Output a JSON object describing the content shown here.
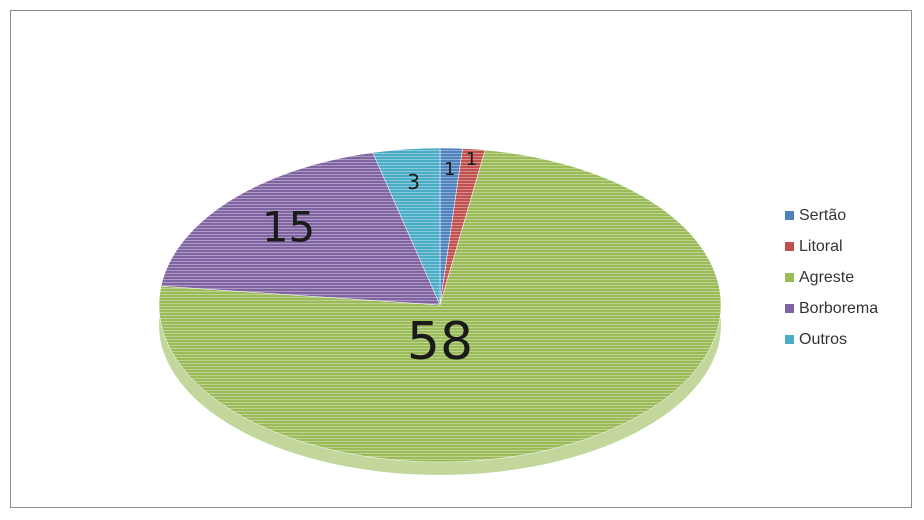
{
  "chart_data": {
    "type": "pie",
    "title": "",
    "categories": [
      "Sertão",
      "Litoral",
      "Agreste",
      "Borborema",
      "Outros"
    ],
    "values": [
      1,
      1,
      58,
      15,
      3
    ],
    "colors": [
      "#4f81bd",
      "#c0504d",
      "#9bbb59",
      "#8064a2",
      "#4bacc6"
    ],
    "data_labels": [
      "1",
      "1",
      "58",
      "15",
      "3"
    ],
    "legend_position": "right",
    "style": "3d-tilted"
  }
}
